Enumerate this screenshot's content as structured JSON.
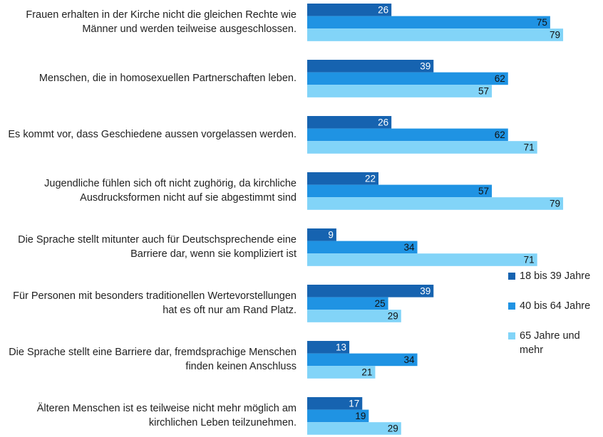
{
  "chart_data": {
    "type": "bar",
    "categories": [
      "Frauen erhalten in der Kirche nicht die gleichen Rechte wie Männer und werden teilweise ausgeschlossen.",
      "Menschen, die in homosexuellen Partnerschaften leben.",
      "Es kommt vor, dass Geschiedene aussen vorgelassen werden.",
      "Jugendliche fühlen sich oft nicht zughörig, da kirchliche Ausdrucksformen nicht auf sie abgestimmt sind",
      "Die Sprache stellt mitunter auch für Deutschsprechende eine Barriere dar, wenn sie kompliziert ist",
      "Für Personen mit besonders traditionellen Wertevorstellungen hat es oft nur am Rand Platz.",
      "Die Sprache stellt eine Barriere dar, fremdsprachige Menschen finden keinen Anschluss",
      "Älteren Menschen ist es teilweise nicht mehr möglich am kirchlichen Leben teilzunehmen."
    ],
    "series": [
      {
        "name": "18 bis 39 Jahre",
        "color": "#1663b0",
        "values": [
          26,
          39,
          26,
          22,
          9,
          39,
          13,
          17
        ]
      },
      {
        "name": "40 bis 64 Jahre",
        "color": "#1f93e3",
        "values": [
          75,
          62,
          62,
          57,
          34,
          25,
          34,
          19
        ]
      },
      {
        "name": "65 Jahre und mehr",
        "color": "#82d4f8",
        "values": [
          79,
          57,
          71,
          79,
          71,
          29,
          21,
          29
        ]
      }
    ],
    "orientation": "horizontal",
    "legend": "right"
  }
}
